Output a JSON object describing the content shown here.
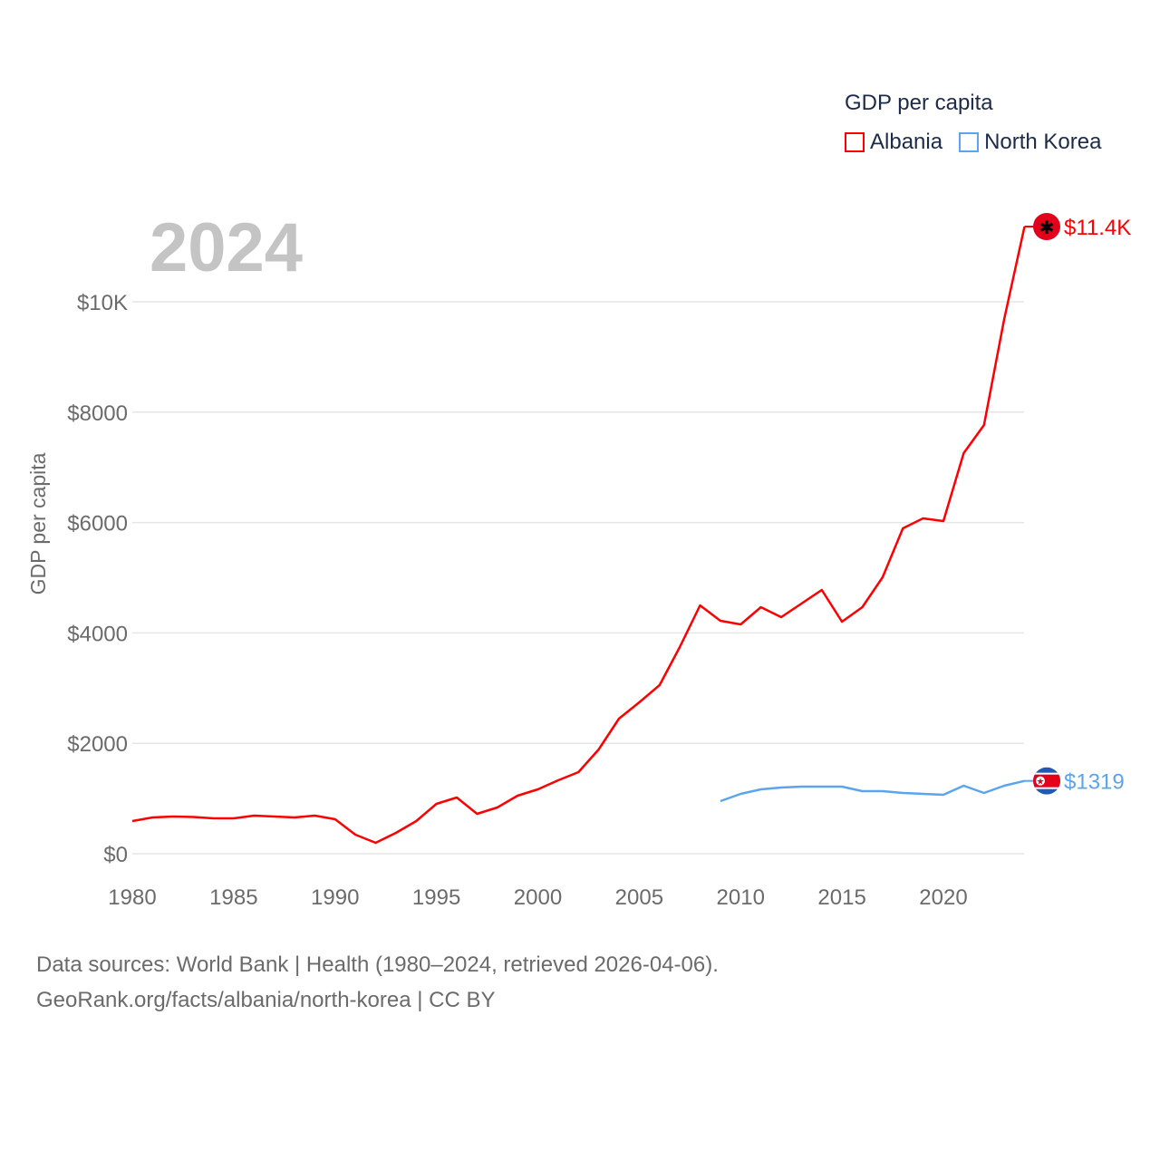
{
  "year_label": "2024",
  "footer": {
    "line1": "Data sources: World Bank | Health (1980–2024, retrieved 2026-04-06).",
    "line2": "GeoRank.org/facts/albania/north-korea | CC BY"
  },
  "chart_data": {
    "type": "line",
    "title": "GDP per capita",
    "xlabel": "",
    "ylabel": "GDP per capita",
    "xlim": [
      1980,
      2024
    ],
    "ylim": [
      0,
      11400
    ],
    "grid": true,
    "legend_position": "top-right",
    "x_ticks": [
      1980,
      1985,
      1990,
      1995,
      2000,
      2005,
      2010,
      2015,
      2020
    ],
    "x_tick_labels": [
      "1980",
      "1985",
      "1990",
      "1995",
      "2000",
      "2005",
      "2010",
      "2015",
      "2020"
    ],
    "y_ticks": [
      0,
      2000,
      4000,
      6000,
      8000,
      10000
    ],
    "y_tick_labels": [
      "$0",
      "$2000",
      "$4000",
      "$6000",
      "$8000",
      "$10K"
    ],
    "series": [
      {
        "name": "Albania",
        "color": "#ff0000",
        "end_label": "$11.4K",
        "flag_icon": "albania-flag",
        "x": [
          1980,
          1981,
          1982,
          1983,
          1984,
          1985,
          1986,
          1987,
          1988,
          1989,
          1990,
          1991,
          1992,
          1993,
          1994,
          1995,
          1996,
          1997,
          1998,
          1999,
          2000,
          2001,
          2002,
          2003,
          2004,
          2005,
          2006,
          2007,
          2008,
          2009,
          2010,
          2011,
          2012,
          2013,
          2014,
          2015,
          2016,
          2017,
          2018,
          2019,
          2020,
          2021,
          2022,
          2023,
          2024
        ],
        "values": [
          591,
          657,
          673,
          665,
          640,
          640,
          690,
          673,
          657,
          690,
          624,
          345,
          197,
          378,
          591,
          903,
          1018,
          722,
          837,
          1051,
          1166,
          1330,
          1478,
          1888,
          2447,
          2742,
          3054,
          3744,
          4499,
          4220,
          4154,
          4466,
          4286,
          4532,
          4778,
          4204,
          4466,
          5008,
          5895,
          6076,
          6026,
          7258,
          7767,
          9688,
          11363
        ]
      },
      {
        "name": "North Korea",
        "color": "#5ba4ee",
        "end_label": "$1319",
        "flag_icon": "north-korea-flag",
        "x": [
          2009,
          2010,
          2011,
          2012,
          2013,
          2014,
          2015,
          2016,
          2017,
          2018,
          2019,
          2020,
          2021,
          2022,
          2023,
          2024
        ],
        "values": [
          952,
          1084,
          1166,
          1199,
          1215,
          1215,
          1215,
          1133,
          1133,
          1100,
          1084,
          1067,
          1232,
          1100,
          1232,
          1319
        ]
      }
    ]
  }
}
